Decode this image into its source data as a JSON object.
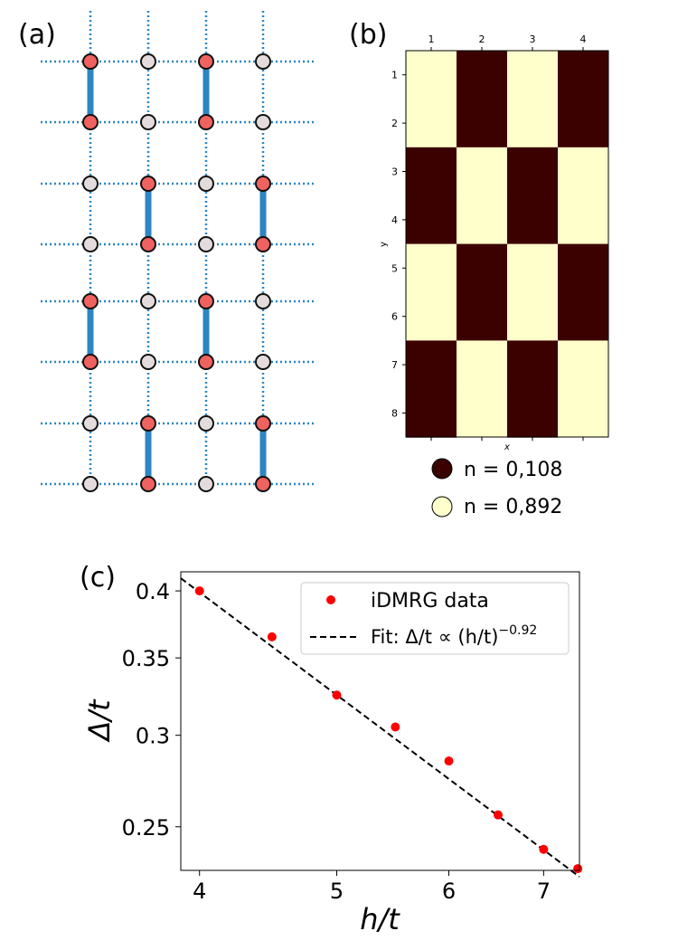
{
  "panels": {
    "a": {
      "label": "(a)"
    },
    "b": {
      "label": "(b)"
    },
    "c": {
      "label": "(c)"
    }
  },
  "colors": {
    "occupied_site": "#f0625f",
    "empty_site": "#e4dcdc",
    "bond": "#2e86c1",
    "dark_cell": "#3b0000",
    "light_cell": "#ffffcc",
    "marker": "#ff0000"
  },
  "chart_data": [
    {
      "id": "a",
      "type": "lattice-diagram",
      "rows": 8,
      "cols": 4,
      "occupied": [
        [
          1,
          0,
          1,
          0
        ],
        [
          1,
          0,
          1,
          0
        ],
        [
          0,
          1,
          0,
          1
        ],
        [
          0,
          1,
          0,
          1
        ],
        [
          1,
          0,
          1,
          0
        ],
        [
          1,
          0,
          1,
          0
        ],
        [
          0,
          1,
          0,
          1
        ],
        [
          0,
          1,
          0,
          1
        ]
      ],
      "strong_bonds": [
        {
          "row": 0,
          "col": 0
        },
        {
          "row": 0,
          "col": 2
        },
        {
          "row": 2,
          "col": 1
        },
        {
          "row": 2,
          "col": 3
        },
        {
          "row": 4,
          "col": 0
        },
        {
          "row": 4,
          "col": 2
        },
        {
          "row": 6,
          "col": 1
        },
        {
          "row": 6,
          "col": 3
        }
      ]
    },
    {
      "id": "b",
      "type": "heatmap",
      "x_ticks": [
        "1",
        "2",
        "3",
        "4"
      ],
      "y_ticks": [
        "1",
        "2",
        "3",
        "4",
        "5",
        "6",
        "7",
        "8"
      ],
      "xlabel": "x",
      "ylabel": "y",
      "values": [
        [
          0.892,
          0.108,
          0.892,
          0.108
        ],
        [
          0.892,
          0.108,
          0.892,
          0.108
        ],
        [
          0.108,
          0.892,
          0.108,
          0.892
        ],
        [
          0.108,
          0.892,
          0.108,
          0.892
        ],
        [
          0.892,
          0.108,
          0.892,
          0.108
        ],
        [
          0.892,
          0.108,
          0.892,
          0.108
        ],
        [
          0.108,
          0.892,
          0.108,
          0.892
        ],
        [
          0.108,
          0.892,
          0.108,
          0.892
        ]
      ],
      "legend": [
        {
          "label": "n = 0,108",
          "value": 0.108
        },
        {
          "label": "n = 0,892",
          "value": 0.892
        }
      ]
    },
    {
      "id": "c",
      "type": "scatter",
      "x_scale": "log",
      "y_scale": "log",
      "xlim": [
        3.88,
        7.42
      ],
      "ylim": [
        0.2292,
        0.4155
      ],
      "x_ticks": [
        4,
        5,
        6,
        7
      ],
      "x_tick_labels": [
        "4",
        "5",
        "6",
        "7"
      ],
      "y_ticks": [
        0.25,
        0.3,
        0.35,
        0.4
      ],
      "y_tick_labels": [
        "0.25",
        "0.3",
        "0.35",
        "0.4"
      ],
      "xlabel": "h/t",
      "ylabel": "Δ/t",
      "series": [
        {
          "name": "iDMRG data",
          "kind": "points",
          "x": [
            4.0,
            4.5,
            5.0,
            5.5,
            6.0,
            6.5,
            7.0,
            7.4
          ],
          "y": [
            0.4,
            0.365,
            0.325,
            0.305,
            0.285,
            0.256,
            0.239,
            0.23
          ]
        },
        {
          "name": "Fit: Δ/t ∝ (h/t)",
          "name_exponent": "−0.92",
          "kind": "dashed-line",
          "exponent": -0.92,
          "x": [
            3.88,
            7.42
          ],
          "y": [
            0.4102,
            0.2263
          ]
        }
      ],
      "legend_position": "upper-right"
    }
  ]
}
